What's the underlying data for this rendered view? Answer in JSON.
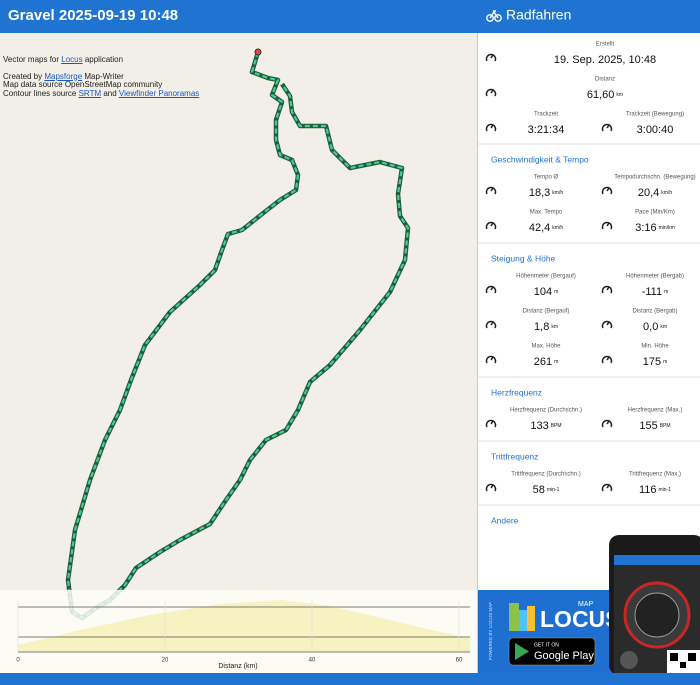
{
  "header": {
    "title": "Gravel 2025-09-19 10:48",
    "activity": "Radfahren"
  },
  "map_attribution": [
    [
      "Vector maps for ",
      "Locus",
      " application"
    ],
    [
      "Created by ",
      "Mapsforge",
      " Map-Writer"
    ],
    [
      "Map data source OpenStreetMap community"
    ],
    [
      "Contour lines source ",
      "SRTM",
      " and ",
      "Viewfinder Panoramas"
    ]
  ],
  "elevation_profile": {
    "xlabel": "Distanz (km)",
    "xticks": [
      0,
      20,
      40,
      60
    ],
    "xlim": [
      0,
      61.5
    ]
  },
  "summary": [
    {
      "label": "Erstellt",
      "value": "19. Sep. 2025, 10:48"
    },
    {
      "label": "Distanz",
      "value": "61,60",
      "unit": "km"
    }
  ],
  "track_time": [
    {
      "label": "Trackzeit",
      "value": "3:21:34"
    },
    {
      "label": "Trackzeit (Bewegung)",
      "value": "3:00:40"
    }
  ],
  "sections": [
    {
      "title": "Geschwindigkeit & Tempo",
      "rows": [
        [
          {
            "label": "Tempo Ø",
            "value": "18,3",
            "unit": "km/h"
          },
          {
            "label": "Tempodurchschn. (Bewegung)",
            "value": "20,4",
            "unit": "km/h"
          }
        ],
        [
          {
            "label": "Max. Tempo",
            "value": "42,4",
            "unit": "km/h"
          },
          {
            "label": "Pace (Min/Km)",
            "value": "3:16",
            "unit": "min/km"
          }
        ]
      ]
    },
    {
      "title": "Steigung & Höhe",
      "rows": [
        [
          {
            "label": "Höhenmeter (Bergauf)",
            "value": "104",
            "unit": "m"
          },
          {
            "label": "Höhenmeter (Bergab)",
            "value": "-111",
            "unit": "m"
          }
        ],
        [
          {
            "label": "Distanz (Bergauf)",
            "value": "1,8",
            "unit": "km"
          },
          {
            "label": "Distanz (Bergab)",
            "value": "0,0",
            "unit": "km"
          }
        ],
        [
          {
            "label": "Max. Höhe",
            "value": "261",
            "unit": "m"
          },
          {
            "label": "Min. Höhe",
            "value": "175",
            "unit": "m"
          }
        ]
      ]
    },
    {
      "title": "Herzfrequenz",
      "rows": [
        [
          {
            "label": "Herzfrequenz (Durchschn.)",
            "value": "133",
            "unit": "BPM"
          },
          {
            "label": "Herzfrequenz (Max.)",
            "value": "155",
            "unit": "BPM"
          }
        ]
      ]
    },
    {
      "title": "Trittfrequenz",
      "rows": [
        [
          {
            "label": "Trittfrequenz (Durchschn.)",
            "value": "58",
            "unit": "min-1"
          },
          {
            "label": "Trittfrequenz (Max.)",
            "value": "116",
            "unit": "min-1"
          }
        ]
      ]
    },
    {
      "title": "Andere",
      "rows": []
    }
  ],
  "ad": {
    "powered": "POWERED BY LOCUS MAP",
    "brand": "LOCUS",
    "brand_sub": "MAP",
    "store_top": "GET IT ON",
    "store": "Google Play"
  }
}
